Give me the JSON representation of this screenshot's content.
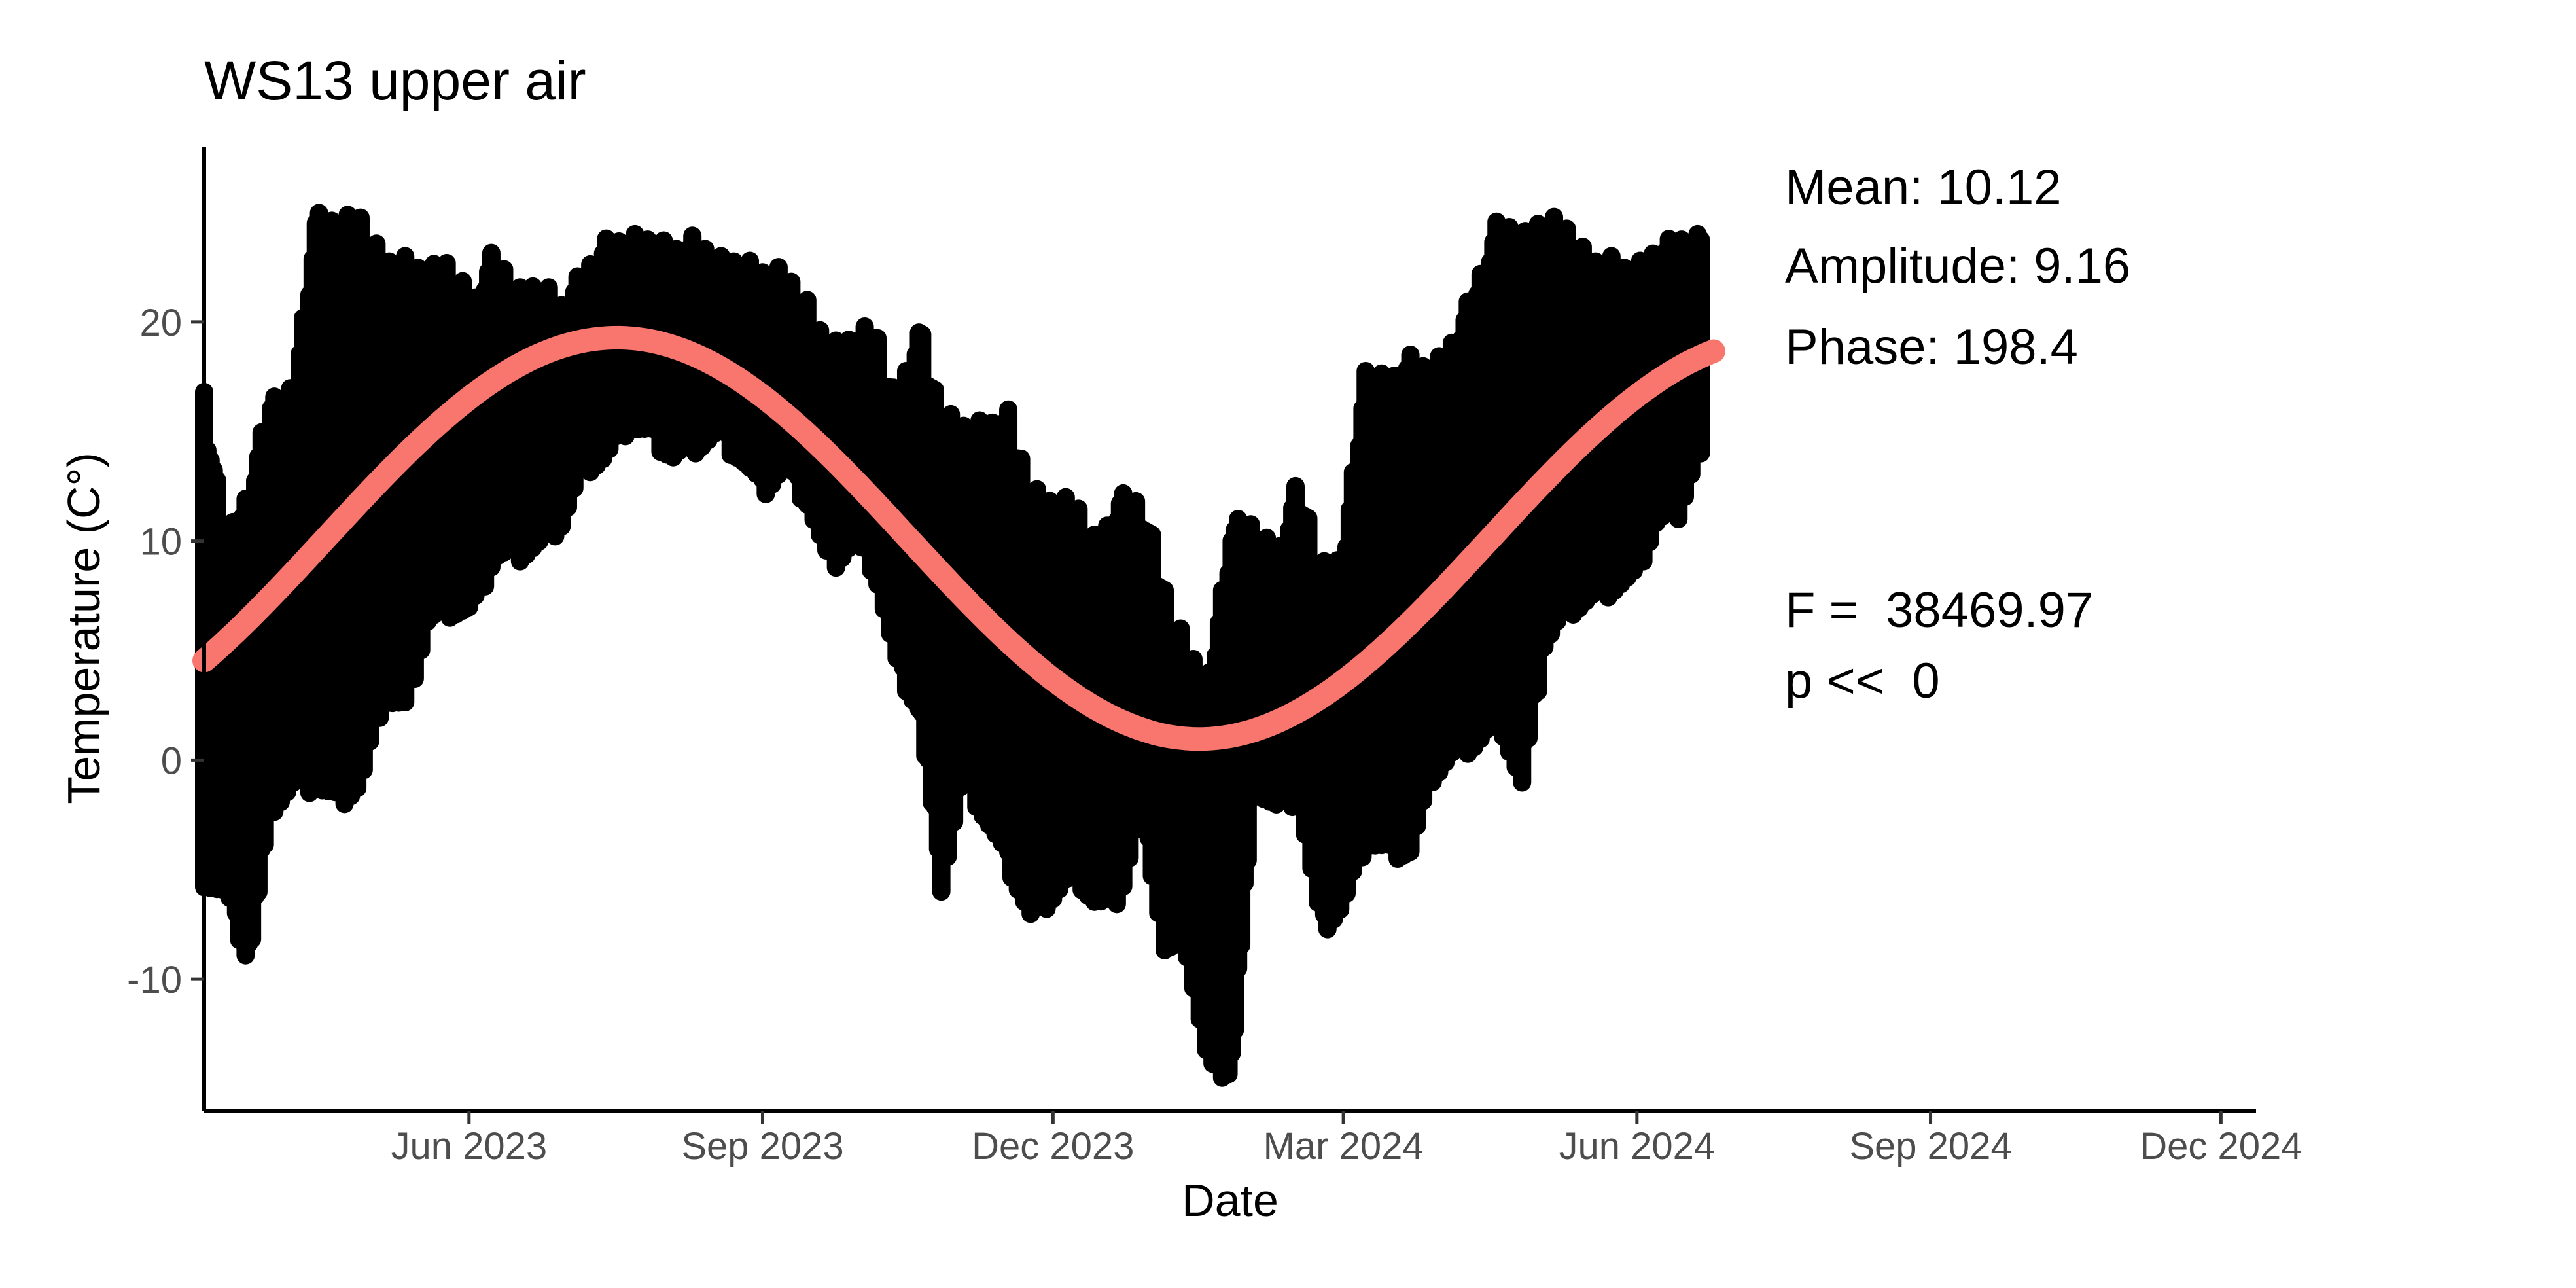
{
  "chart_data": {
    "type": "scatter",
    "title": "WS13 upper air",
    "xlabel": "Date",
    "ylabel": "Temperature (C°)",
    "xlim": [
      "2023-03-10",
      "2024-12-12"
    ],
    "ylim": [
      -16,
      28
    ],
    "x_ticks": [
      {
        "date": "2023-06-01",
        "label": "Jun 2023"
      },
      {
        "date": "2023-09-01",
        "label": "Sep 2023"
      },
      {
        "date": "2023-12-01",
        "label": "Dec 2023"
      },
      {
        "date": "2024-03-01",
        "label": "Mar 2024"
      },
      {
        "date": "2024-06-01",
        "label": "Jun 2024"
      },
      {
        "date": "2024-09-01",
        "label": "Sep 2024"
      },
      {
        "date": "2024-12-01",
        "label": "Dec 2024"
      }
    ],
    "y_ticks": [
      -10,
      0,
      10,
      20
    ],
    "grid": false,
    "legend": "none",
    "annotations": {
      "mean": "Mean: 10.12",
      "amplitude": "Amplitude: 9.16",
      "phase": "Phase: 198.4",
      "f_stat": "F =  38469.97",
      "p_value": "p <<  0"
    },
    "series": [
      {
        "type": "scatter-band",
        "color": "#000000",
        "points": [
          {
            "x": "2023-03-10",
            "ymin": -5.8,
            "ymax": 16.8
          },
          {
            "x": "2023-03-17",
            "ymin": -6.5,
            "ymax": 10.2
          },
          {
            "x": "2023-03-24",
            "ymin": -9.5,
            "ymax": 12.5
          },
          {
            "x": "2023-03-31",
            "ymin": -2.5,
            "ymax": 16.8
          },
          {
            "x": "2023-04-07",
            "ymin": -1.5,
            "ymax": 17.0
          },
          {
            "x": "2023-04-14",
            "ymin": -1.5,
            "ymax": 25.0
          },
          {
            "x": "2023-04-21",
            "ymin": -2.2,
            "ymax": 24.8
          },
          {
            "x": "2023-04-28",
            "ymin": -1.5,
            "ymax": 25.0
          },
          {
            "x": "2023-05-05",
            "ymin": 2.5,
            "ymax": 23.0
          },
          {
            "x": "2023-05-12",
            "ymin": 2.0,
            "ymax": 23.0
          },
          {
            "x": "2023-05-19",
            "ymin": 6.0,
            "ymax": 22.5
          },
          {
            "x": "2023-05-26",
            "ymin": 6.5,
            "ymax": 23.0
          },
          {
            "x": "2023-06-02",
            "ymin": 6.5,
            "ymax": 21.0
          },
          {
            "x": "2023-06-09",
            "ymin": 9.0,
            "ymax": 23.5
          },
          {
            "x": "2023-06-16",
            "ymin": 9.0,
            "ymax": 21.5
          },
          {
            "x": "2023-06-23",
            "ymin": 9.5,
            "ymax": 22.0
          },
          {
            "x": "2023-06-30",
            "ymin": 10.5,
            "ymax": 21.0
          },
          {
            "x": "2023-07-07",
            "ymin": 13.0,
            "ymax": 22.5
          },
          {
            "x": "2023-07-14",
            "ymin": 13.5,
            "ymax": 23.8
          },
          {
            "x": "2023-07-21",
            "ymin": 15.0,
            "ymax": 24.0
          },
          {
            "x": "2023-07-28",
            "ymin": 14.5,
            "ymax": 24.0
          },
          {
            "x": "2023-08-04",
            "ymin": 13.5,
            "ymax": 23.5
          },
          {
            "x": "2023-08-11",
            "ymin": 14.0,
            "ymax": 24.0
          },
          {
            "x": "2023-08-18",
            "ymin": 14.5,
            "ymax": 23.0
          },
          {
            "x": "2023-08-25",
            "ymin": 13.5,
            "ymax": 23.0
          },
          {
            "x": "2023-09-01",
            "ymin": 12.0,
            "ymax": 22.5
          },
          {
            "x": "2023-09-08",
            "ymin": 13.0,
            "ymax": 22.5
          },
          {
            "x": "2023-09-15",
            "ymin": 11.5,
            "ymax": 21.0
          },
          {
            "x": "2023-09-22",
            "ymin": 8.5,
            "ymax": 19.0
          },
          {
            "x": "2023-09-29",
            "ymin": 9.5,
            "ymax": 19.5
          },
          {
            "x": "2023-10-06",
            "ymin": 8.5,
            "ymax": 20.0
          },
          {
            "x": "2023-10-13",
            "ymin": 4.0,
            "ymax": 16.5
          },
          {
            "x": "2023-10-20",
            "ymin": 2.0,
            "ymax": 20.0
          },
          {
            "x": "2023-10-27",
            "ymin": -6.0,
            "ymax": 16.0
          },
          {
            "x": "2023-11-03",
            "ymin": -1.0,
            "ymax": 15.5
          },
          {
            "x": "2023-11-10",
            "ymin": -3.0,
            "ymax": 15.5
          },
          {
            "x": "2023-11-17",
            "ymin": -5.0,
            "ymax": 16.0
          },
          {
            "x": "2023-11-24",
            "ymin": -7.5,
            "ymax": 12.5
          },
          {
            "x": "2023-12-01",
            "ymin": -6.5,
            "ymax": 12.0
          },
          {
            "x": "2023-12-08",
            "ymin": -5.5,
            "ymax": 12.0
          },
          {
            "x": "2023-12-15",
            "ymin": -7.0,
            "ymax": 10.0
          },
          {
            "x": "2023-12-22",
            "ymin": -6.5,
            "ymax": 12.2
          },
          {
            "x": "2023-12-29",
            "ymin": -2.5,
            "ymax": 12.0
          },
          {
            "x": "2024-01-05",
            "ymin": -9.0,
            "ymax": 8.0
          },
          {
            "x": "2024-01-12",
            "ymin": -9.0,
            "ymax": 5.2
          },
          {
            "x": "2024-01-19",
            "ymin": -14.5,
            "ymax": 4.0
          },
          {
            "x": "2024-01-26",
            "ymin": -14.5,
            "ymax": 11.0
          },
          {
            "x": "2024-02-02",
            "ymin": -1.5,
            "ymax": 11.0
          },
          {
            "x": "2024-02-09",
            "ymin": -2.5,
            "ymax": 9.5
          },
          {
            "x": "2024-02-16",
            "ymin": -2.0,
            "ymax": 13.0
          },
          {
            "x": "2024-02-23",
            "ymin": -8.0,
            "ymax": 9.0
          },
          {
            "x": "2024-03-01",
            "ymin": -7.0,
            "ymax": 9.5
          },
          {
            "x": "2024-03-08",
            "ymin": -4.0,
            "ymax": 18.0
          },
          {
            "x": "2024-03-15",
            "ymin": -4.5,
            "ymax": 17.5
          },
          {
            "x": "2024-03-22",
            "ymin": -4.5,
            "ymax": 18.5
          },
          {
            "x": "2024-03-29",
            "ymin": -1.0,
            "ymax": 18.0
          },
          {
            "x": "2024-04-05",
            "ymin": 0.0,
            "ymax": 19.5
          },
          {
            "x": "2024-04-12",
            "ymin": 0.5,
            "ymax": 22.0
          },
          {
            "x": "2024-04-19",
            "ymin": 1.5,
            "ymax": 25.0
          },
          {
            "x": "2024-04-26",
            "ymin": -1.5,
            "ymax": 24.0
          },
          {
            "x": "2024-05-03",
            "ymin": 5.0,
            "ymax": 25.0
          },
          {
            "x": "2024-05-10",
            "ymin": 6.5,
            "ymax": 24.5
          },
          {
            "x": "2024-05-17",
            "ymin": 7.0,
            "ymax": 23.0
          },
          {
            "x": "2024-05-24",
            "ymin": 7.5,
            "ymax": 23.0
          },
          {
            "x": "2024-05-31",
            "ymin": 8.0,
            "ymax": 22.5
          },
          {
            "x": "2024-06-07",
            "ymin": 10.5,
            "ymax": 23.5
          },
          {
            "x": "2024-06-14",
            "ymin": 11.0,
            "ymax": 24.0
          },
          {
            "x": "2024-06-21",
            "ymin": 14.0,
            "ymax": 24.0
          }
        ]
      },
      {
        "type": "line",
        "color": "#F8766D",
        "mean": 10.12,
        "amplitude": 9.16,
        "phase_doy": 198.4,
        "period_days": 365.25,
        "x_start": "2023-03-10",
        "x_end": "2024-06-25"
      }
    ]
  }
}
